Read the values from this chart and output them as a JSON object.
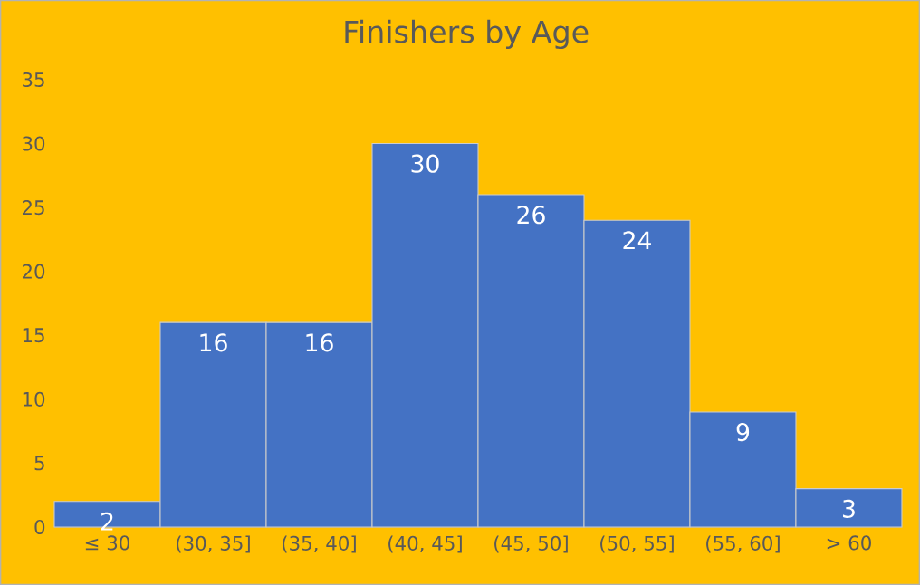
{
  "chart_data": {
    "type": "bar",
    "title": "Finishers by Age",
    "categories": [
      "≤ 30",
      "(30, 35]",
      "(35, 40]",
      "(40, 45]",
      "(45, 50]",
      "(50, 55]",
      "(55, 60]",
      "> 60"
    ],
    "values": [
      2,
      16,
      16,
      30,
      26,
      24,
      9,
      3
    ],
    "color": "#4472c4",
    "ylim": [
      0,
      35
    ],
    "yticks": [
      0,
      5,
      10,
      15,
      20,
      25,
      30,
      35
    ],
    "data_labels": true
  }
}
